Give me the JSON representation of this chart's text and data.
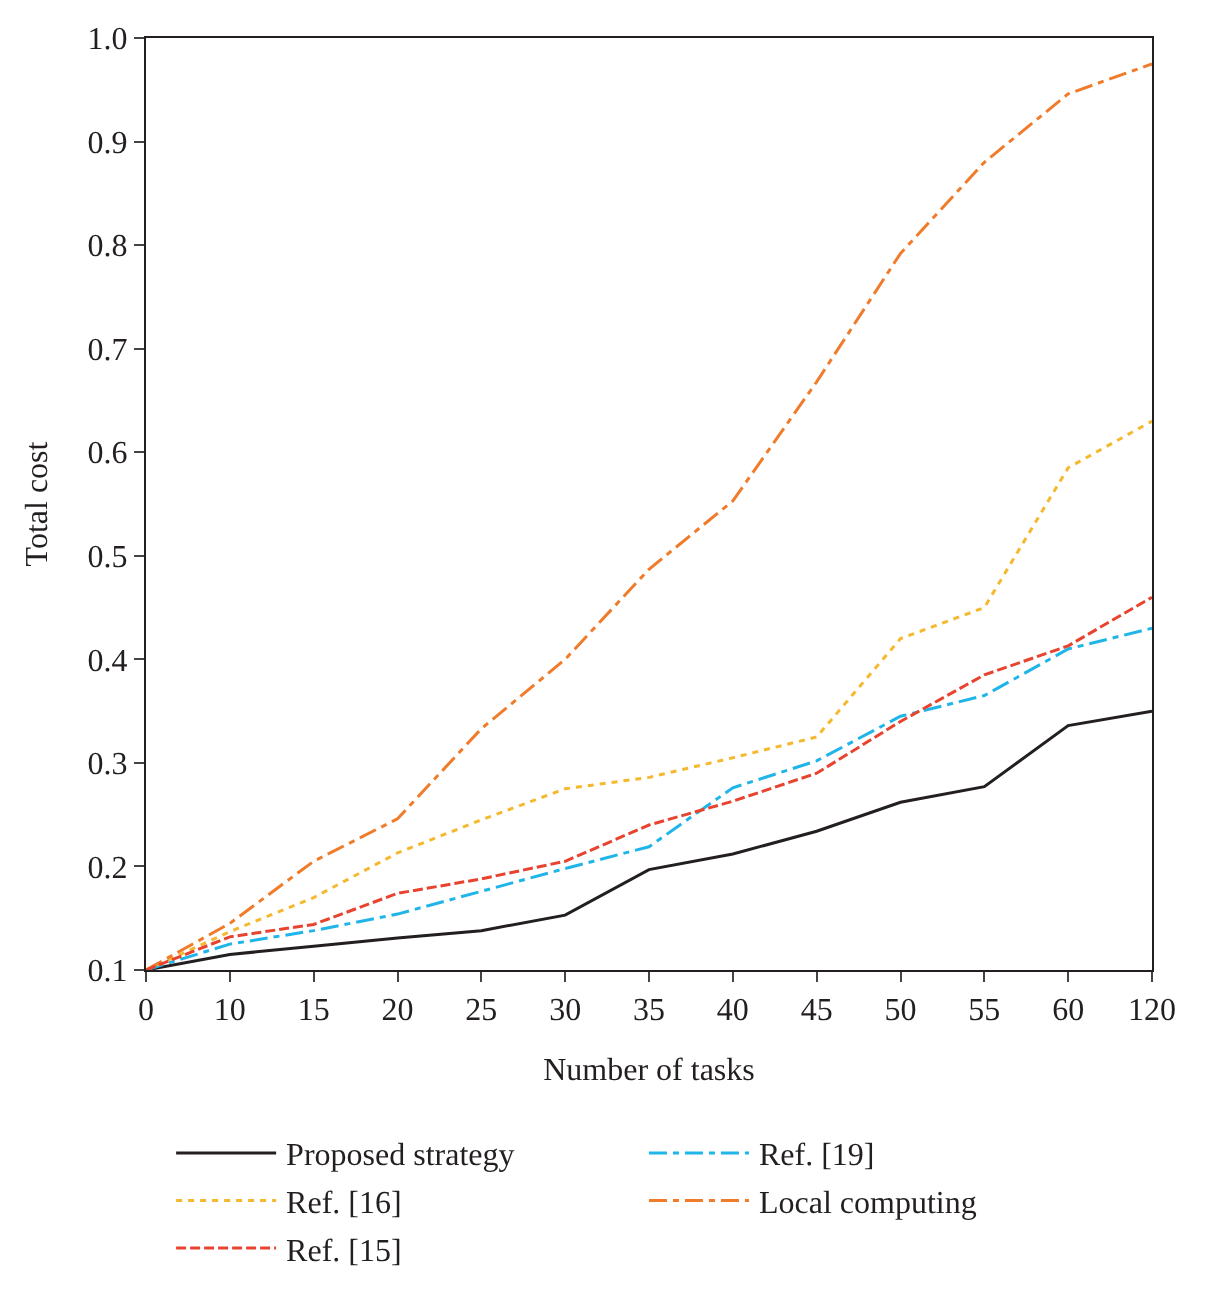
{
  "chart_data": {
    "type": "line",
    "xlabel": "Number of tasks",
    "ylabel": "Total cost",
    "categories": [
      "0",
      "10",
      "15",
      "20",
      "25",
      "30",
      "35",
      "40",
      "45",
      "50",
      "55",
      "60",
      "120"
    ],
    "ylim": [
      0.1,
      1.0
    ],
    "yticks": [
      0.1,
      0.2,
      0.3,
      0.4,
      0.5,
      0.6,
      0.7,
      0.8,
      0.9,
      {
        "value": 1,
        "label": "1.0"
      }
    ],
    "legend": "bottom",
    "marker": "none",
    "series": [
      {
        "name": "Proposed strategy",
        "color": "#231f20",
        "line_style": "solid",
        "values": [
          0.1,
          0.115,
          0.123,
          0.131,
          0.138,
          0.153,
          0.197,
          0.212,
          0.234,
          0.262,
          0.277,
          0.336,
          0.35
        ]
      },
      {
        "name": "Ref. [19]",
        "color": "#1fb5e8",
        "line_style": "dashdot",
        "values": [
          0.1,
          0.125,
          0.138,
          0.154,
          0.176,
          0.198,
          0.219,
          0.276,
          0.302,
          0.345,
          0.365,
          0.41,
          0.43
        ]
      },
      {
        "name": "Ref. [16]",
        "color": "#f5b82e",
        "line_style": "dotted",
        "values": [
          0.1,
          0.137,
          0.17,
          0.213,
          0.245,
          0.275,
          0.286,
          0.305,
          0.325,
          0.42,
          0.45,
          0.585,
          0.63
        ]
      },
      {
        "name": "Local computing",
        "color": "#f07b2a",
        "line_style": "dashdot",
        "values": [
          0.1,
          0.145,
          0.205,
          0.246,
          0.333,
          0.4,
          0.487,
          0.553,
          0.668,
          0.792,
          0.88,
          0.946,
          0.975
        ]
      },
      {
        "name": "Ref. [15]",
        "color": "#e8432e",
        "line_style": "dashed",
        "values": [
          0.1,
          0.132,
          0.144,
          0.174,
          0.188,
          0.205,
          0.24,
          0.263,
          0.29,
          0.34,
          0.385,
          0.413,
          0.46
        ]
      }
    ]
  }
}
